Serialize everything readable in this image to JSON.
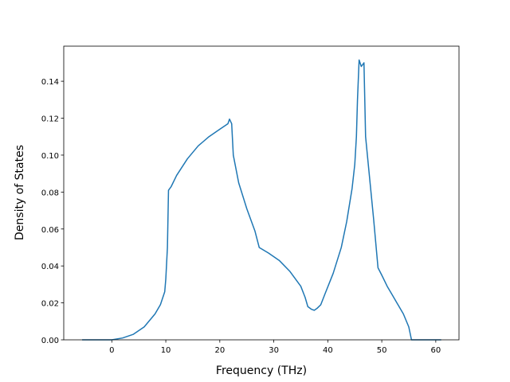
{
  "chart_data": {
    "type": "line",
    "xlabel": "Frequency (THz)",
    "ylabel": "Density of States",
    "x": [
      -5.5,
      0,
      2,
      4,
      6,
      8,
      9,
      9.8,
      10,
      10.3,
      10.5,
      11,
      12,
      14,
      16,
      18,
      20,
      21.5,
      21.8,
      22.2,
      22.5,
      23.5,
      25,
      26.5,
      27.3,
      29,
      31,
      33,
      35,
      35.8,
      36.3,
      37,
      37.5,
      38,
      38.7,
      39.5,
      41,
      42.5,
      43.5,
      44.5,
      45,
      45.3,
      45.5,
      45.8,
      46.2,
      46.7,
      47,
      47.5,
      48.5,
      49.3,
      50,
      51,
      52,
      53,
      54,
      55,
      55.5,
      61
    ],
    "series": [
      {
        "name": "DOS",
        "color": "#1f77b4",
        "values": [
          0,
          0,
          0.001,
          0.003,
          0.007,
          0.014,
          0.019,
          0.026,
          0.033,
          0.05,
          0.081,
          0.083,
          0.089,
          0.098,
          0.105,
          0.11,
          0.114,
          0.117,
          0.1195,
          0.117,
          0.1,
          0.085,
          0.071,
          0.059,
          0.05,
          0.047,
          0.043,
          0.037,
          0.029,
          0.023,
          0.018,
          0.0165,
          0.016,
          0.017,
          0.019,
          0.025,
          0.036,
          0.05,
          0.064,
          0.082,
          0.095,
          0.11,
          0.13,
          0.1515,
          0.148,
          0.15,
          0.11,
          0.095,
          0.065,
          0.039,
          0.035,
          0.029,
          0.024,
          0.019,
          0.014,
          0.007,
          0,
          0
        ]
      }
    ],
    "xlim": [
      -8.9,
      64.3
    ],
    "ylim": [
      0,
      0.159
    ],
    "xticks": [
      0,
      10,
      20,
      30,
      40,
      50,
      60
    ],
    "yticks": [
      {
        "value": 0,
        "label": "0.00"
      },
      {
        "value": 0.02,
        "label": "0.02"
      },
      {
        "value": 0.04,
        "label": "0.04"
      },
      {
        "value": 0.06,
        "label": "0.06"
      },
      {
        "value": 0.08,
        "label": "0.08"
      },
      {
        "value": 0.1,
        "label": "0.10"
      },
      {
        "value": 0.12,
        "label": "0.12"
      },
      {
        "value": 0.14,
        "label": "0.14"
      }
    ]
  }
}
